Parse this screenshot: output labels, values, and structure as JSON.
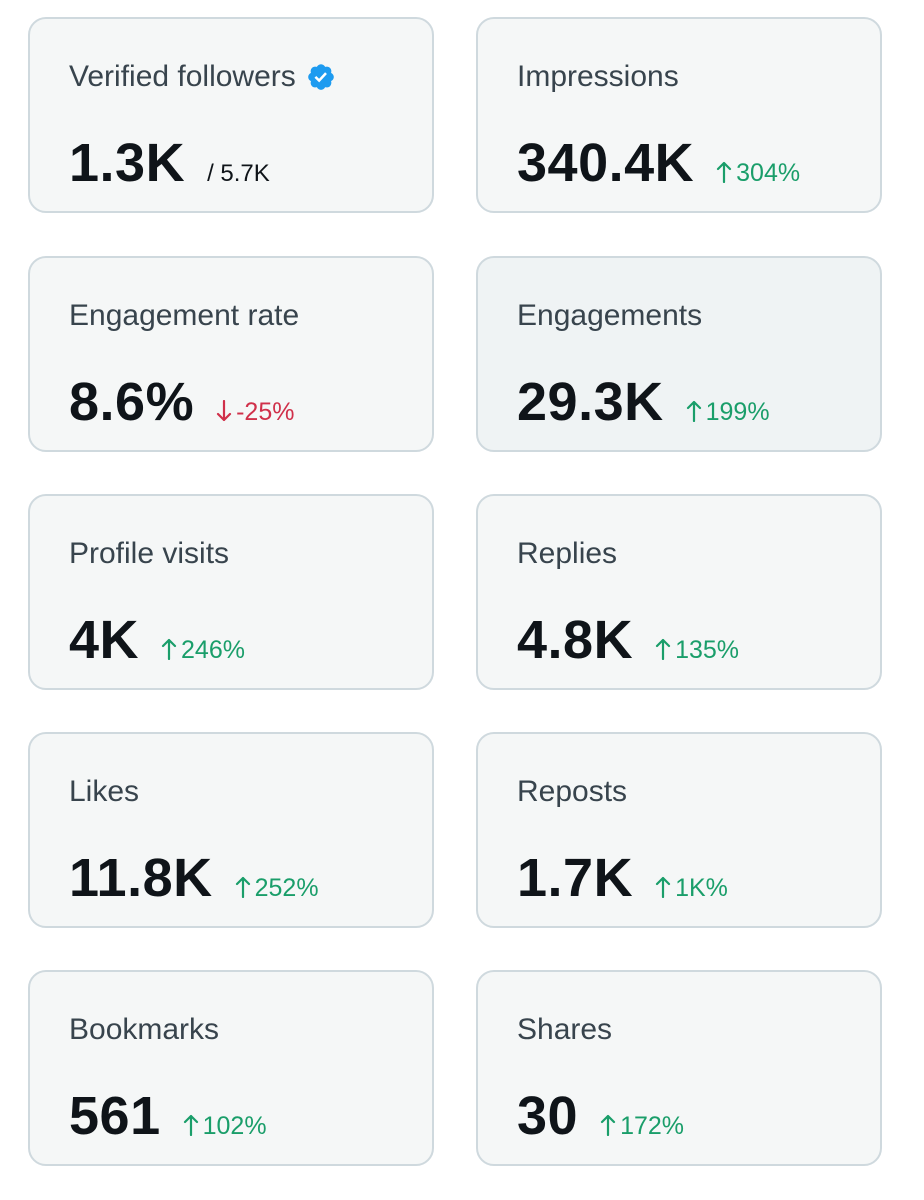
{
  "colors": {
    "up": "#1a9e6a",
    "down": "#d0304a",
    "verified": "#1d9bf0",
    "card_bg": "#f5f7f7",
    "card_border": "#cfd9de"
  },
  "metrics": {
    "verified_followers": {
      "label": "Verified followers",
      "value": "1.3K",
      "total": "/ 5.7K",
      "icon": "verified-badge-icon"
    },
    "impressions": {
      "label": "Impressions",
      "value": "340.4K",
      "change": "304%",
      "direction": "up"
    },
    "engagement_rate": {
      "label": "Engagement rate",
      "value": "8.6%",
      "change": "-25%",
      "direction": "down"
    },
    "engagements": {
      "label": "Engagements",
      "value": "29.3K",
      "change": "199%",
      "direction": "up"
    },
    "profile_visits": {
      "label": "Profile visits",
      "value": "4K",
      "change": "246%",
      "direction": "up"
    },
    "replies": {
      "label": "Replies",
      "value": "4.8K",
      "change": "135%",
      "direction": "up"
    },
    "likes": {
      "label": "Likes",
      "value": "11.8K",
      "change": "252%",
      "direction": "up"
    },
    "reposts": {
      "label": "Reposts",
      "value": "1.7K",
      "change": "1K%",
      "direction": "up"
    },
    "bookmarks": {
      "label": "Bookmarks",
      "value": "561",
      "change": "102%",
      "direction": "up"
    },
    "shares": {
      "label": "Shares",
      "value": "30",
      "change": "172%",
      "direction": "up"
    }
  }
}
